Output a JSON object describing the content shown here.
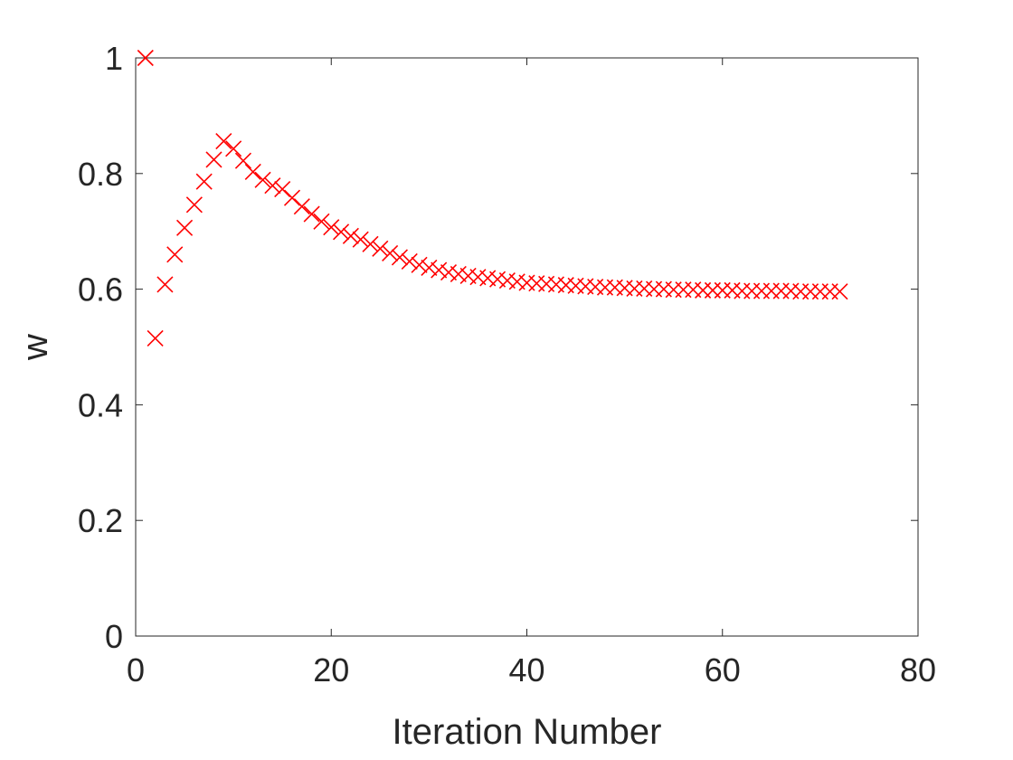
{
  "chart_data": {
    "type": "scatter",
    "title": "",
    "xlabel": "Iteration Number",
    "ylabel": "w",
    "xlim": [
      0,
      80
    ],
    "ylim": [
      0,
      1
    ],
    "xticks": [
      0,
      20,
      40,
      60,
      80
    ],
    "yticks": [
      0,
      0.2,
      0.4,
      0.6,
      0.8,
      1
    ],
    "xtick_labels": [
      "0",
      "20",
      "40",
      "60",
      "80"
    ],
    "ytick_labels": [
      "0",
      "0.2",
      "0.4",
      "0.6",
      "0.8",
      "1"
    ],
    "grid": false,
    "marker": "x",
    "color": "#ff0000",
    "series": [
      {
        "x": [
          1,
          2,
          3,
          4,
          5,
          6,
          7,
          8,
          9,
          10,
          11,
          12,
          13,
          14,
          15,
          16,
          17,
          18,
          19,
          20,
          21,
          22,
          23,
          24,
          25,
          26,
          27,
          28,
          29,
          30,
          31,
          32,
          33,
          34,
          35,
          36,
          37,
          38,
          39,
          40,
          41,
          42,
          43,
          44,
          45,
          46,
          47,
          48,
          49,
          50,
          51,
          52,
          53,
          54,
          55,
          56,
          57,
          58,
          59,
          60,
          61,
          62,
          63,
          64,
          65,
          66,
          67,
          68,
          69,
          70,
          71,
          72
        ],
        "y": [
          1.0,
          0.515,
          0.608,
          0.66,
          0.706,
          0.746,
          0.786,
          0.824,
          0.856,
          0.843,
          0.822,
          0.803,
          0.789,
          0.779,
          0.773,
          0.758,
          0.743,
          0.73,
          0.717,
          0.707,
          0.699,
          0.692,
          0.686,
          0.678,
          0.67,
          0.662,
          0.655,
          0.648,
          0.642,
          0.637,
          0.633,
          0.629,
          0.626,
          0.623,
          0.621,
          0.619,
          0.617,
          0.615,
          0.613,
          0.611,
          0.61,
          0.609,
          0.608,
          0.607,
          0.606,
          0.605,
          0.604,
          0.603,
          0.603,
          0.602,
          0.601,
          0.601,
          0.6,
          0.6,
          0.599,
          0.599,
          0.599,
          0.598,
          0.598,
          0.598,
          0.598,
          0.597,
          0.597,
          0.597,
          0.597,
          0.597,
          0.597,
          0.596,
          0.596,
          0.596,
          0.596,
          0.596
        ]
      }
    ]
  }
}
